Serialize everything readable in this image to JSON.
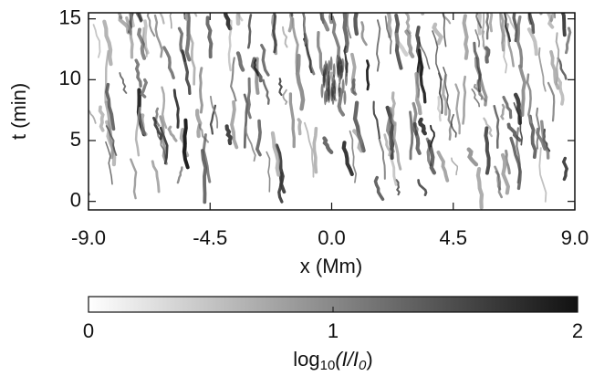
{
  "chart_data": {
    "type": "heatmap",
    "xlabel": "x (Mm)",
    "ylabel": "t (min)",
    "xlim": [
      -9,
      9
    ],
    "xticks": [
      {
        "value": -9,
        "label": "-9.0"
      },
      {
        "value": -4.5,
        "label": "-4.5"
      },
      {
        "value": 0,
        "label": "0.0"
      },
      {
        "value": 4.5,
        "label": "4.5"
      },
      {
        "value": 9,
        "label": "9.0"
      }
    ],
    "ylim": [
      -0.7,
      15.5
    ],
    "yticks": [
      0,
      5,
      10,
      15
    ],
    "colorbar": {
      "lim": [
        0,
        2
      ],
      "ticks": [
        0,
        1,
        2
      ],
      "colors": [
        "#ffffff",
        "#111111"
      ],
      "label": [
        "log",
        "10",
        "(I/I",
        "0",
        ")"
      ]
    }
  }
}
